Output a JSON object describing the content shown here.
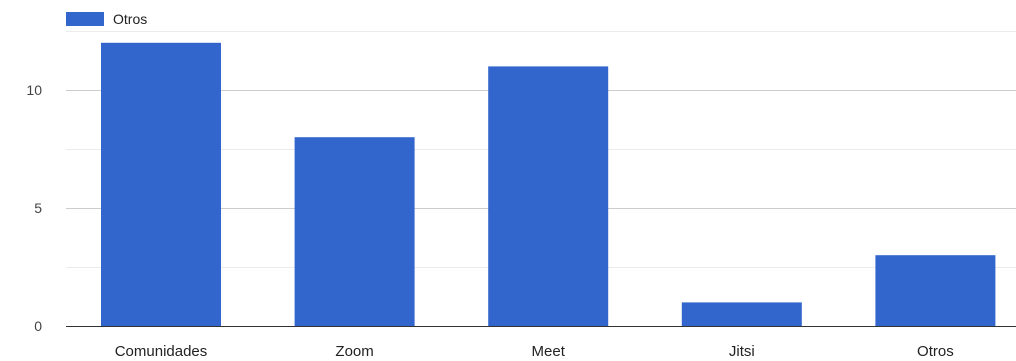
{
  "chart_data": {
    "type": "bar",
    "legend": {
      "position": "top-left",
      "entries": [
        {
          "name": "Otros",
          "color": "#3366cc"
        }
      ]
    },
    "categories": [
      "Comunidades",
      "Zoom",
      "Meet",
      "Jitsi",
      "Otros"
    ],
    "series": [
      {
        "name": "Otros",
        "values": [
          12,
          8,
          11,
          1,
          3
        ],
        "color": "#3366cc"
      }
    ],
    "yticks": [
      "0",
      "5",
      "10"
    ],
    "ylim": [
      0,
      12.5
    ],
    "grid": true
  }
}
